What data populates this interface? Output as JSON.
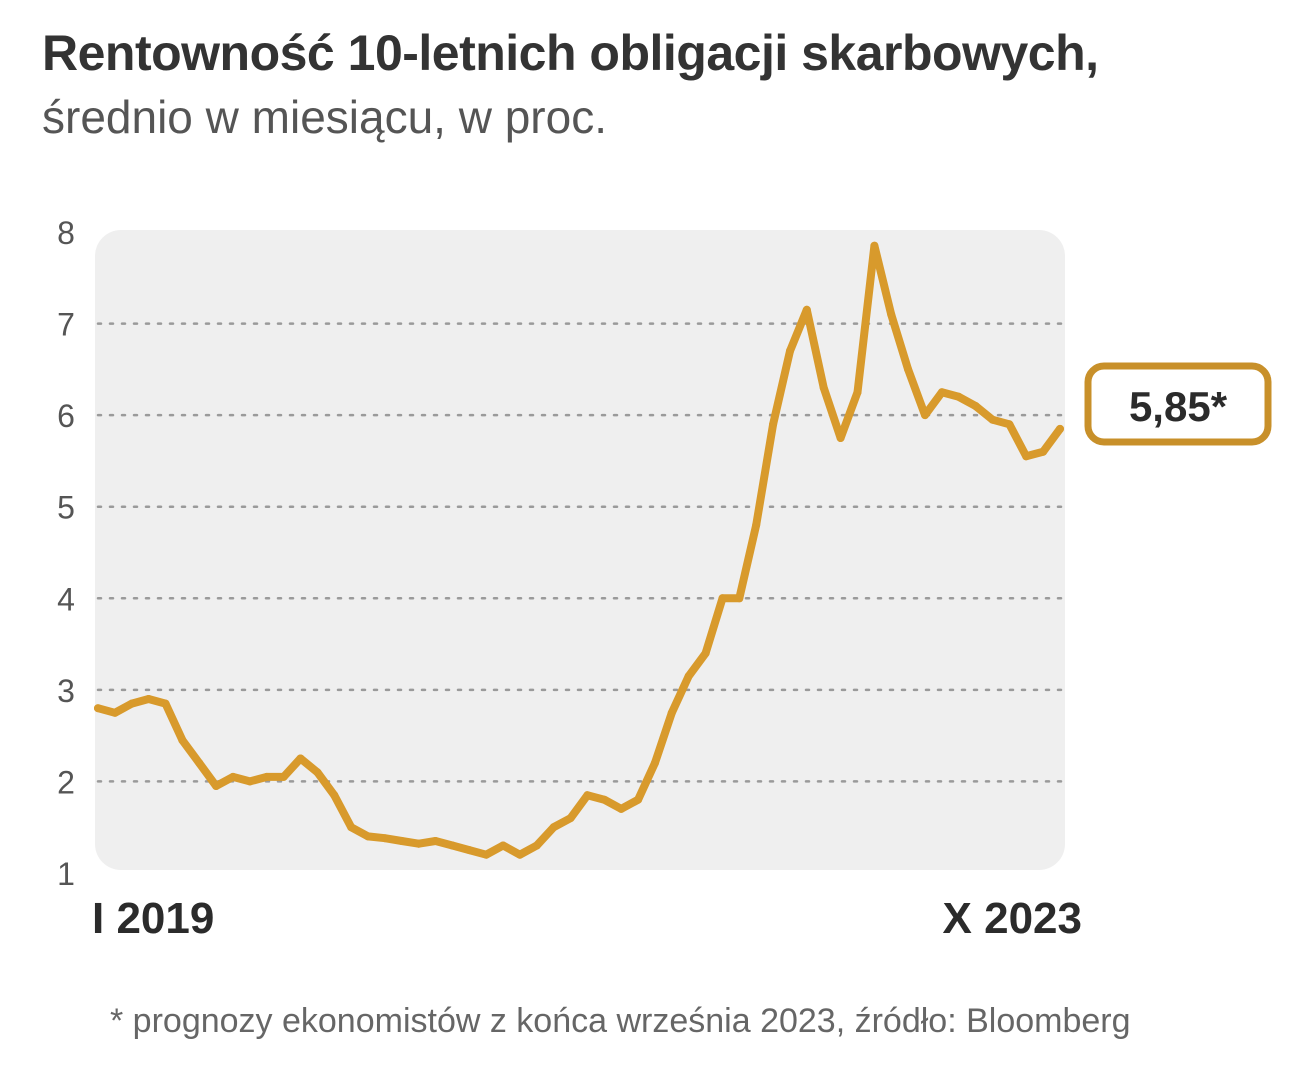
{
  "title": "Rentowność 10-letnich obligacji skarbowych,",
  "subtitle": "średnio w miesiącu, w proc.",
  "footnote": "* prognozy ekonomistów z końca września 2023, źródło: Bloomberg",
  "colors": {
    "line": "#d89a2c",
    "panel": "#efefef",
    "grid": "#9a9a9a",
    "label_border": "#c8902a"
  },
  "chart_data": {
    "type": "line",
    "ylim": [
      1,
      8
    ],
    "yticks": [
      "1",
      "2",
      "3",
      "4",
      "5",
      "6",
      "7",
      "8"
    ],
    "x_start_label": "I 2019",
    "x_end_label": "X 2023",
    "end_value_label": "5,85*",
    "grid": "horizontal dotted",
    "x": [
      "2019-01",
      "2019-02",
      "2019-03",
      "2019-04",
      "2019-05",
      "2019-06",
      "2019-07",
      "2019-08",
      "2019-09",
      "2019-10",
      "2019-11",
      "2019-12",
      "2020-01",
      "2020-02",
      "2020-03",
      "2020-04",
      "2020-05",
      "2020-06",
      "2020-07",
      "2020-08",
      "2020-09",
      "2020-10",
      "2020-11",
      "2020-12",
      "2021-01",
      "2021-02",
      "2021-03",
      "2021-04",
      "2021-05",
      "2021-06",
      "2021-07",
      "2021-08",
      "2021-09",
      "2021-10",
      "2021-11",
      "2021-12",
      "2022-01",
      "2022-02",
      "2022-03",
      "2022-04",
      "2022-05",
      "2022-06",
      "2022-07",
      "2022-08",
      "2022-09",
      "2022-10",
      "2022-11",
      "2022-12",
      "2023-01",
      "2023-02",
      "2023-03",
      "2023-04",
      "2023-05",
      "2023-06",
      "2023-07",
      "2023-08",
      "2023-09",
      "2023-10"
    ],
    "values": [
      2.8,
      2.75,
      2.85,
      2.9,
      2.85,
      2.45,
      2.2,
      1.95,
      2.05,
      2.0,
      2.05,
      2.05,
      2.25,
      2.1,
      1.85,
      1.5,
      1.4,
      1.38,
      1.35,
      1.32,
      1.35,
      1.3,
      1.25,
      1.2,
      1.3,
      1.2,
      1.3,
      1.5,
      1.6,
      1.85,
      1.8,
      1.7,
      1.8,
      2.2,
      2.75,
      3.15,
      3.4,
      4.0,
      4.0,
      4.8,
      5.9,
      6.7,
      7.15,
      6.3,
      5.75,
      6.25,
      7.85,
      7.1,
      6.5,
      6.0,
      6.25,
      6.2,
      6.1,
      5.95,
      5.9,
      5.55,
      5.6,
      5.85
    ]
  }
}
